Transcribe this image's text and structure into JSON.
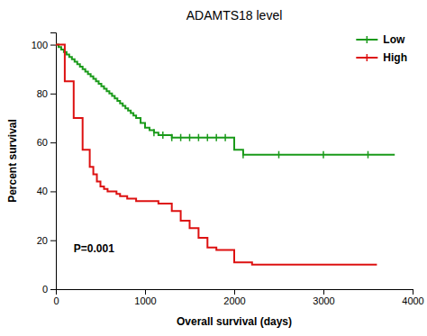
{
  "chart_data": {
    "type": "step",
    "title": "ADAMTS18 level",
    "x_label": "Overall survival (days)",
    "y_label": "Percent survival",
    "xlim": [
      0,
      4000
    ],
    "ylim": [
      0,
      105
    ],
    "xticks": [
      0,
      1000,
      2000,
      3000,
      4000
    ],
    "yticks": [
      0,
      20,
      40,
      60,
      80,
      100
    ],
    "grid": false,
    "legend": "upper-right",
    "series": [
      {
        "name": "Low",
        "color": "#1a9a1a",
        "x": [
          0,
          30,
          60,
          90,
          120,
          150,
          180,
          210,
          240,
          270,
          300,
          330,
          360,
          390,
          420,
          450,
          480,
          510,
          540,
          570,
          600,
          630,
          660,
          690,
          720,
          750,
          780,
          810,
          840,
          870,
          900,
          950,
          1000,
          1050,
          1100,
          1150,
          1200,
          1300,
          1400,
          1500,
          1600,
          1700,
          1800,
          1900,
          1960,
          2000,
          2100,
          2500,
          3000,
          3500,
          3800
        ],
        "values": [
          100,
          99,
          98,
          97,
          96,
          95,
          94,
          93,
          92,
          91,
          90,
          89,
          88,
          87,
          86,
          85,
          84,
          83,
          82,
          81,
          80,
          79,
          78,
          77,
          76,
          75,
          74,
          73,
          72,
          71,
          70,
          68,
          66,
          65,
          64,
          63,
          63,
          62,
          62,
          62,
          62,
          62,
          62,
          62,
          62,
          57,
          55,
          55,
          55,
          55,
          55
        ],
        "censor_x": [
          1100,
          1200,
          1300,
          1400,
          1500,
          1600,
          1700,
          1800,
          1900,
          2100,
          2500,
          3000,
          3500
        ],
        "censor_values": [
          64,
          63,
          62,
          62,
          62,
          62,
          62,
          62,
          62,
          55,
          55,
          55,
          55
        ]
      },
      {
        "name": "High",
        "color": "#dd1111",
        "x": [
          0,
          100,
          200,
          300,
          380,
          420,
          460,
          500,
          540,
          580,
          620,
          680,
          720,
          760,
          800,
          850,
          900,
          950,
          1000,
          1050,
          1100,
          1150,
          1200,
          1300,
          1400,
          1500,
          1600,
          1700,
          1750,
          1800,
          2000,
          2200,
          2400,
          3500,
          3600
        ],
        "values": [
          100,
          85,
          70,
          57,
          50,
          47,
          44,
          42,
          41,
          40,
          40,
          39,
          38,
          38,
          37,
          37,
          36,
          36,
          36,
          36,
          36,
          35,
          35,
          32,
          28,
          25,
          21,
          17,
          17,
          16,
          11,
          10,
          10,
          10,
          10
        ]
      }
    ],
    "annotations": [
      {
        "text": "P=0.001",
        "x": 200,
        "y": 15
      }
    ]
  }
}
